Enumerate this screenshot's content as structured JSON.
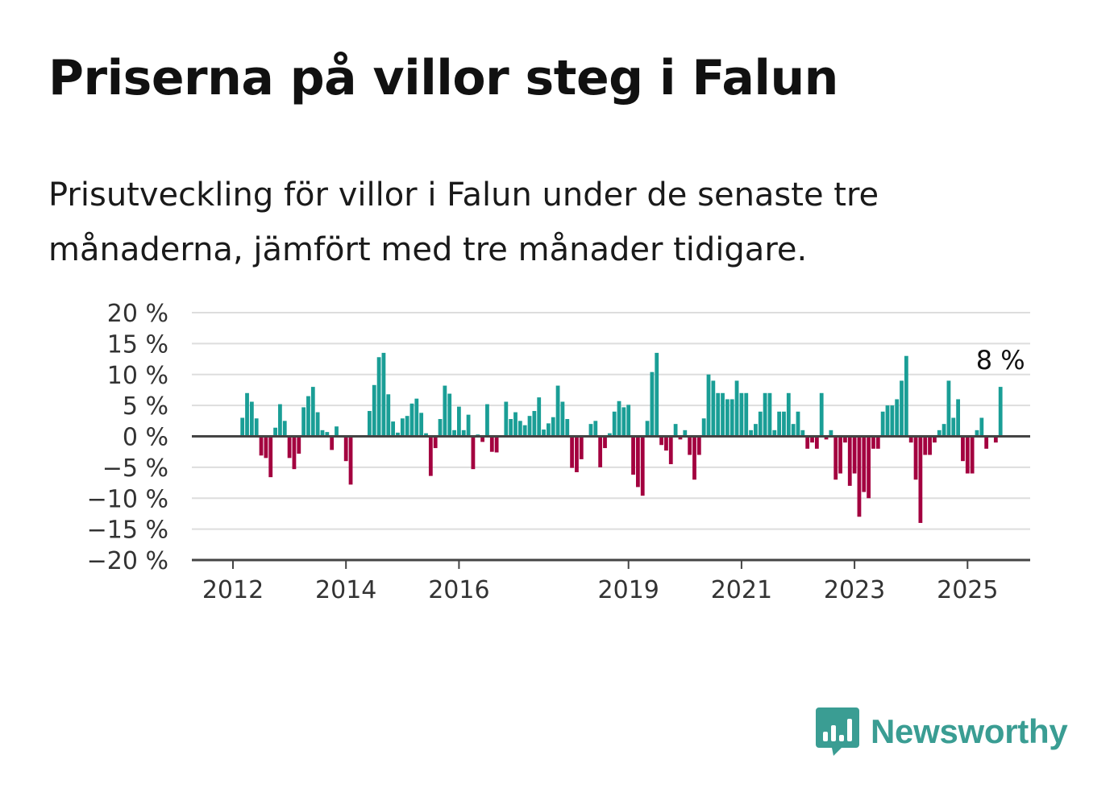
{
  "title": "Priserna på villor steg i Falun",
  "subtitle": "Prisutveckling för villor i Falun under de senaste tre månaderna, jämfört med tre månader tidigare.",
  "brand": {
    "name": "Newsworthy",
    "color": "#3a9d93",
    "icon": "bar-chart-speech-icon"
  },
  "colors": {
    "positive": "#1a9e96",
    "negative": "#a3003f",
    "grid": "#dddddd",
    "axis": "#444444"
  },
  "chart_data": {
    "type": "bar",
    "start": "2012-03",
    "frequency": "monthly",
    "ylim": [
      -20,
      20
    ],
    "yticks": [
      20,
      15,
      10,
      5,
      0,
      -5,
      -10,
      -15,
      -20
    ],
    "ytick_labels": [
      "20 %",
      "15 %",
      "10 %",
      "5 %",
      "0 %",
      "−5 %",
      "−10 %",
      "−15 %",
      "−20 %"
    ],
    "xticks": [
      2012,
      2014,
      2016,
      2019,
      2021,
      2023,
      2025
    ],
    "xtick_labels": [
      "2012",
      "2014",
      "2016",
      "2019",
      "2021",
      "2023",
      "2025"
    ],
    "grid": true,
    "annotation": {
      "label": "8 %",
      "value": 8
    },
    "values": [
      3,
      7,
      5.6,
      2.9,
      -3.1,
      -3.5,
      -6.6,
      1.4,
      5.2,
      2.5,
      -3.5,
      -5.3,
      -2.8,
      4.7,
      6.5,
      8,
      3.9,
      1,
      0.7,
      -2.2,
      1.6,
      0,
      -4,
      -7.8,
      0,
      0,
      0,
      4.1,
      8.3,
      12.8,
      13.5,
      6.8,
      2.4,
      0.6,
      2.9,
      3.3,
      5.3,
      6.1,
      3.8,
      0.5,
      -6.4,
      -1.9,
      2.8,
      8.2,
      6.9,
      1,
      4.8,
      1,
      3.5,
      -5.3,
      0.3,
      -0.9,
      5.2,
      -2.5,
      -2.6,
      0,
      5.6,
      2.8,
      3.9,
      2.5,
      1.8,
      3.3,
      4.1,
      6.3,
      1.1,
      2.1,
      3.1,
      8.2,
      5.6,
      2.8,
      -5.1,
      -5.8,
      -3.7,
      0.1,
      2,
      2.5,
      -5,
      -1.9,
      0.5,
      4,
      5.7,
      4.7,
      5.1,
      -6.2,
      -8.2,
      -9.6,
      2.5,
      10.4,
      13.5,
      -1.4,
      -2.3,
      -4.5,
      2,
      -0.5,
      1,
      -3,
      -7,
      -3,
      2.9,
      10,
      9,
      7,
      7,
      6,
      6,
      9,
      7,
      7,
      1,
      2,
      4,
      7,
      7,
      1,
      4,
      4,
      7,
      2,
      4,
      1,
      -2,
      -1,
      -2,
      7,
      -0.5,
      1,
      -7,
      -6,
      -1,
      -8,
      -6,
      -13,
      -9,
      -10,
      -2,
      -2,
      4,
      5,
      5,
      6,
      9,
      13,
      -1,
      -7,
      -14,
      -3,
      -3,
      -1,
      1,
      2,
      9,
      3,
      6,
      -4,
      -6,
      -6,
      1,
      3,
      -2,
      0,
      -1,
      8
    ]
  }
}
